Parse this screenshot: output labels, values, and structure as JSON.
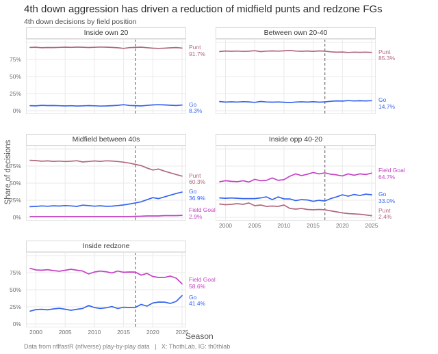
{
  "header": {
    "title": "4th down aggression has driven a reduction of midfield punts and redzone FGs",
    "subtitle": "4th down decisions by field position"
  },
  "axis": {
    "y_title": "Share of decisions",
    "x_title": "Season",
    "y_ticks": [
      {
        "v": 0,
        "label": "0%"
      },
      {
        "v": 25,
        "label": "25%"
      },
      {
        "v": 50,
        "label": "50%"
      },
      {
        "v": 75,
        "label": "75%"
      }
    ],
    "x_ticks": [
      {
        "v": 2000,
        "label": "2000"
      },
      {
        "v": 2005,
        "label": "2005"
      },
      {
        "v": 2010,
        "label": "2010"
      },
      {
        "v": 2015,
        "label": "2015"
      },
      {
        "v": 2020,
        "label": "2020"
      },
      {
        "v": 2025,
        "label": "2025"
      }
    ],
    "grid_y": [
      0,
      25,
      50,
      75,
      100
    ],
    "grid_x": [
      2000,
      2005,
      2010,
      2015,
      2020,
      2025
    ]
  },
  "caption": {
    "text": "Data from nflfastR (nflverse) play-by-play data   |   X: ThothLab, IG: th0thlab"
  },
  "colors": {
    "punt": "#b1697c",
    "go": "#3565ee",
    "field_goal": "#c441c4",
    "vline": "#737373",
    "grid": "#eaeaea"
  },
  "chart_data": [
    {
      "type": "line",
      "title": "Inside own 20",
      "x": [
        1999,
        2000,
        2001,
        2002,
        2003,
        2004,
        2005,
        2006,
        2007,
        2008,
        2009,
        2010,
        2011,
        2012,
        2013,
        2014,
        2015,
        2016,
        2017,
        2018,
        2019,
        2020,
        2021,
        2022,
        2023,
        2024,
        2025
      ],
      "vline_x": 2017,
      "ylim": [
        0,
        100
      ],
      "show_y_labels": true,
      "show_x_labels": false,
      "series": [
        {
          "name": "Punt",
          "color_key": "punt",
          "end_label": "91.7%",
          "label_dy": -5,
          "values": [
            92.6,
            92.9,
            92.1,
            92.5,
            92.4,
            92.7,
            93.0,
            92.7,
            93.1,
            92.9,
            92.5,
            92.8,
            93.2,
            93.0,
            92.6,
            92.1,
            91.2,
            92.3,
            92.6,
            93.0,
            92.2,
            91.5,
            91.2,
            91.5,
            92.0,
            92.4,
            91.7
          ]
        },
        {
          "name": "Go",
          "color_key": "go",
          "end_label": "8.3%",
          "label_dy": -5,
          "values": [
            7.4,
            7.1,
            7.9,
            7.5,
            7.6,
            7.3,
            7.0,
            7.3,
            6.9,
            7.1,
            7.5,
            7.2,
            6.8,
            7.0,
            7.4,
            7.9,
            8.8,
            7.7,
            7.4,
            7.0,
            7.8,
            8.5,
            8.8,
            8.5,
            8.0,
            7.6,
            8.3
          ]
        }
      ]
    },
    {
      "type": "line",
      "title": "Between own 20-40",
      "x": [
        1999,
        2000,
        2001,
        2002,
        2003,
        2004,
        2005,
        2006,
        2007,
        2008,
        2009,
        2010,
        2011,
        2012,
        2013,
        2014,
        2015,
        2016,
        2017,
        2018,
        2019,
        2020,
        2021,
        2022,
        2023,
        2024,
        2025
      ],
      "vline_x": 2017,
      "ylim": [
        0,
        100
      ],
      "show_y_labels": false,
      "show_x_labels": false,
      "series": [
        {
          "name": "Punt",
          "color_key": "punt",
          "end_label": "85.3%",
          "label_dy": -5,
          "values": [
            86.6,
            87.4,
            87.0,
            87.3,
            86.8,
            87.1,
            87.8,
            86.5,
            87.2,
            87.5,
            87.2,
            87.6,
            88.1,
            87.3,
            87.0,
            87.4,
            86.9,
            87.5,
            87.1,
            86.2,
            85.6,
            85.9,
            85.2,
            85.7,
            85.4,
            85.7,
            85.3
          ]
        },
        {
          "name": "Go",
          "color_key": "go",
          "end_label": "14.7%",
          "label_dy": -5,
          "values": [
            13.4,
            12.6,
            13.0,
            12.7,
            13.2,
            12.9,
            12.2,
            13.5,
            12.8,
            12.5,
            12.8,
            12.4,
            11.9,
            12.7,
            13.0,
            12.6,
            13.1,
            12.5,
            12.9,
            13.8,
            14.4,
            14.1,
            14.8,
            14.3,
            14.6,
            14.3,
            14.7
          ]
        }
      ]
    },
    {
      "type": "line",
      "title": "Midfield between 40s",
      "x": [
        1999,
        2000,
        2001,
        2002,
        2003,
        2004,
        2005,
        2006,
        2007,
        2008,
        2009,
        2010,
        2011,
        2012,
        2013,
        2014,
        2015,
        2016,
        2017,
        2018,
        2019,
        2020,
        2021,
        2022,
        2023,
        2024,
        2025
      ],
      "vline_x": 2017,
      "ylim": [
        0,
        100
      ],
      "show_y_labels": true,
      "show_x_labels": false,
      "series": [
        {
          "name": "Punt",
          "color_key": "punt",
          "end_label": "60.3%",
          "label_dy": -5,
          "values": [
            83.4,
            83.0,
            82.1,
            82.6,
            81.9,
            82.3,
            81.7,
            82.1,
            82.8,
            81.0,
            81.7,
            82.5,
            81.9,
            82.7,
            82.4,
            81.7,
            80.7,
            79.3,
            77.5,
            75.7,
            72.2,
            69.2,
            70.6,
            67.6,
            65.1,
            62.6,
            60.3
          ]
        },
        {
          "name": "Go",
          "color_key": "go",
          "end_label": "36.9%",
          "label_dy": -5,
          "values": [
            15.6,
            16.0,
            16.7,
            16.2,
            16.9,
            16.5,
            17.1,
            16.7,
            16.0,
            17.8,
            17.1,
            16.3,
            16.9,
            16.1,
            16.4,
            17.1,
            18.1,
            19.5,
            21.1,
            22.7,
            25.8,
            28.8,
            27.4,
            29.9,
            32.4,
            34.9,
            36.9
          ]
        },
        {
          "name": "Field Goal",
          "color_key": "field_goal",
          "end_label": "2.9%",
          "label_dy": -12,
          "values": [
            1.0,
            1.0,
            1.2,
            1.2,
            1.2,
            1.2,
            1.2,
            1.2,
            1.2,
            1.2,
            1.2,
            1.2,
            1.2,
            1.2,
            1.2,
            1.2,
            1.2,
            1.2,
            1.4,
            1.6,
            2.0,
            2.0,
            2.0,
            2.5,
            2.5,
            2.5,
            2.9
          ]
        }
      ]
    },
    {
      "type": "line",
      "title": "Inside opp 40-20",
      "x": [
        1999,
        2000,
        2001,
        2002,
        2003,
        2004,
        2005,
        2006,
        2007,
        2008,
        2009,
        2010,
        2011,
        2012,
        2013,
        2014,
        2015,
        2016,
        2017,
        2018,
        2019,
        2020,
        2021,
        2022,
        2023,
        2024,
        2025
      ],
      "vline_x": 2017,
      "ylim": [
        0,
        100
      ],
      "show_y_labels": false,
      "show_x_labels": true,
      "series": [
        {
          "name": "Field Goal",
          "color_key": "field_goal",
          "end_label": "64.7%",
          "label_dy": -8,
          "values": [
            52.1,
            53.6,
            52.6,
            52.1,
            53.6,
            51.6,
            55.6,
            53.6,
            54.1,
            57.6,
            54.1,
            55.1,
            60.1,
            63.6,
            61.1,
            63.1,
            65.6,
            63.6,
            65.1,
            63.1,
            62.1,
            60.6,
            63.6,
            61.6,
            63.6,
            62.6,
            64.7
          ]
        },
        {
          "name": "Go",
          "color_key": "go",
          "end_label": "33.0%",
          "label_dy": -5,
          "values": [
            28.4,
            27.9,
            28.4,
            27.9,
            27.4,
            27.4,
            27.4,
            28.4,
            29.9,
            25.9,
            29.9,
            26.9,
            26.9,
            24.4,
            25.9,
            25.4,
            23.4,
            24.9,
            23.9,
            27.4,
            29.9,
            32.9,
            30.9,
            33.4,
            31.9,
            33.9,
            33.0
          ]
        },
        {
          "name": "Punt",
          "color_key": "punt",
          "end_label": "2.4%",
          "label_dy": -12,
          "values": [
            19.5,
            18.5,
            19.0,
            20.0,
            19.0,
            21.0,
            17.0,
            18.0,
            16.0,
            16.5,
            16.0,
            18.0,
            13.0,
            12.0,
            13.0,
            11.5,
            11.0,
            11.5,
            11.0,
            9.5,
            8.0,
            6.5,
            5.5,
            5.0,
            4.5,
            3.5,
            2.4
          ]
        }
      ]
    },
    {
      "type": "line",
      "title": "Inside redzone",
      "x": [
        1999,
        2000,
        2001,
        2002,
        2003,
        2004,
        2005,
        2006,
        2007,
        2008,
        2009,
        2010,
        2011,
        2012,
        2013,
        2014,
        2015,
        2016,
        2017,
        2018,
        2019,
        2020,
        2021,
        2022,
        2023,
        2024,
        2025
      ],
      "vline_x": 2017,
      "ylim": [
        0,
        100
      ],
      "show_y_labels": true,
      "show_x_labels": true,
      "series": [
        {
          "name": "Field Goal",
          "color_key": "field_goal",
          "end_label": "58.6%",
          "label_dy": -10,
          "values": [
            81.3,
            79.0,
            78.6,
            79.4,
            78.0,
            77.1,
            78.5,
            80.0,
            78.6,
            77.4,
            73.1,
            76.0,
            77.4,
            76.4,
            74.6,
            77.4,
            75.6,
            76.0,
            75.9,
            71.4,
            73.9,
            69.4,
            68.0,
            68.1,
            70.0,
            67.0,
            58.6
          ]
        },
        {
          "name": "Go",
          "color_key": "go",
          "end_label": "41.4%",
          "label_dy": -2,
          "values": [
            18.7,
            21.0,
            21.4,
            20.6,
            22.0,
            22.9,
            21.5,
            20.0,
            21.4,
            22.6,
            26.9,
            24.0,
            22.6,
            23.6,
            25.4,
            22.6,
            24.4,
            24.0,
            24.1,
            28.6,
            26.1,
            30.6,
            32.0,
            31.9,
            30.0,
            33.0,
            41.4
          ]
        }
      ]
    }
  ]
}
